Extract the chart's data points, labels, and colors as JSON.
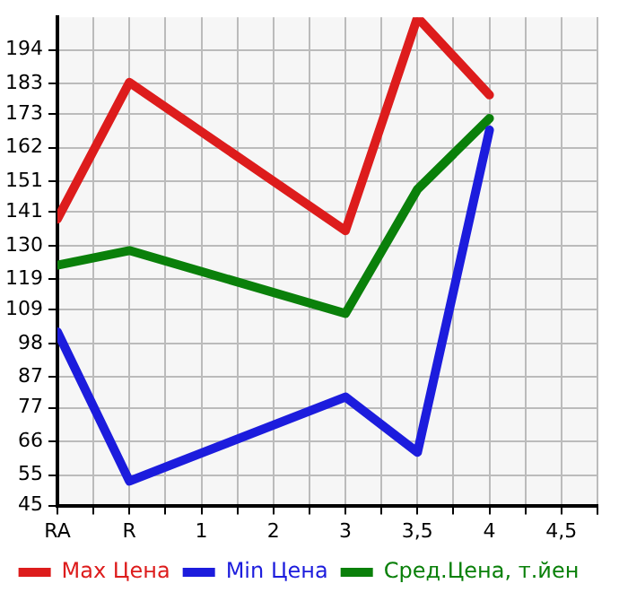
{
  "chart_data": {
    "type": "line",
    "categories": [
      "RA",
      "R",
      "1",
      "2",
      "3",
      "3,5",
      "4",
      "4,5"
    ],
    "series": [
      {
        "name": "Max Цена",
        "color": "#dd1c1c",
        "values": [
          138.7,
          183.4,
          null,
          null,
          134.9,
          204.6,
          179.3,
          null
        ]
      },
      {
        "name": "Min Цена",
        "color": "#1c1cdd",
        "values": [
          101.8,
          53.0,
          null,
          null,
          80.5,
          62.4,
          167.8,
          null
        ]
      },
      {
        "name": "Сред.Цена, т.йен",
        "color": "#0a800a",
        "values": [
          123.6,
          128.4,
          null,
          null,
          107.8,
          148.4,
          171.6,
          null
        ]
      }
    ],
    "ylim": [
      45,
      204.7
    ],
    "yticks": [
      45,
      55,
      66,
      77,
      87,
      98,
      109,
      119,
      130,
      141,
      151,
      162,
      173,
      183,
      194
    ],
    "grid": true,
    "legend": "bottom",
    "marker": "none",
    "line_style": "solid"
  }
}
